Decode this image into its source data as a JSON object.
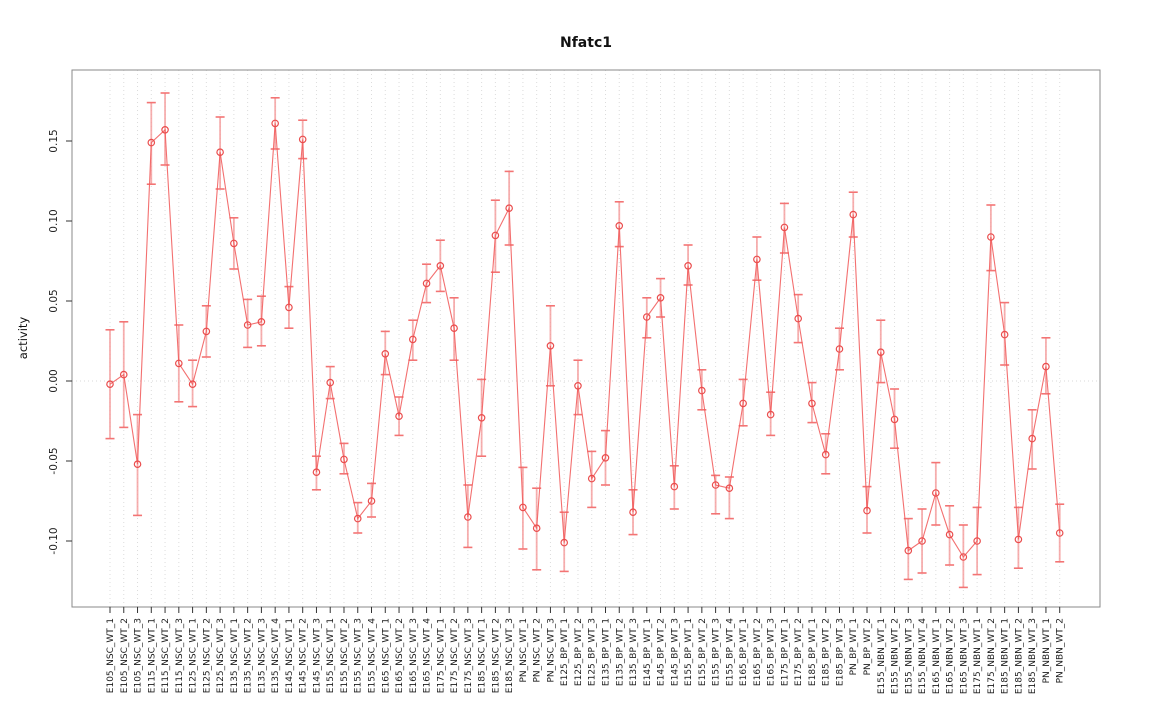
{
  "chart_data": {
    "type": "line",
    "title": "Nfatc1",
    "xlabel": "",
    "ylabel": "activity",
    "legend": "none",
    "grid": "dotted vertical gridline at every category; dotted horizontal line at y=0",
    "marker": "open-circle",
    "error_bars": true,
    "ylim": [
      -0.135,
      0.19
    ],
    "yticks": [
      -0.1,
      -0.05,
      0.0,
      0.05,
      0.1,
      0.15
    ],
    "ytick_labels": [
      "-0.10",
      "-0.05",
      "0.00",
      "0.05",
      "0.10",
      "0.15"
    ],
    "colors": {
      "line": "#f15c5c",
      "marker": "#ea4d4d",
      "error_bar": "#f59a9a",
      "error_cap": "#f37474",
      "grid": "#dcdcdc",
      "zero_line": "#d9d9d9",
      "box": "#8a8a8a",
      "tick": "#333333",
      "text": "#1c1c1c"
    },
    "categories": [
      "E105_NSC_WT_1",
      "E105_NSC_WT_2",
      "E105_NSC_WT_3",
      "E115_NSC_WT_1",
      "E115_NSC_WT_2",
      "E115_NSC_WT_3",
      "E125_NSC_WT_1",
      "E125_NSC_WT_2",
      "E125_NSC_WT_3",
      "E135_NSC_WT_1",
      "E135_NSC_WT_2",
      "E135_NSC_WT_3",
      "E135_NSC_WT_4",
      "E145_NSC_WT_1",
      "E145_NSC_WT_2",
      "E145_NSC_WT_3",
      "E155_NSC_WT_1",
      "E155_NSC_WT_2",
      "E155_NSC_WT_3",
      "E155_NSC_WT_4",
      "E165_NSC_WT_1",
      "E165_NSC_WT_2",
      "E165_NSC_WT_3",
      "E165_NSC_WT_4",
      "E175_NSC_WT_1",
      "E175_NSC_WT_2",
      "E175_NSC_WT_3",
      "E185_NSC_WT_1",
      "E185_NSC_WT_2",
      "E185_NSC_WT_3",
      "PN_NSC_WT_1",
      "PN_NSC_WT_2",
      "PN_NSC_WT_3",
      "E125_BP_WT_1",
      "E125_BP_WT_2",
      "E125_BP_WT_3",
      "E135_BP_WT_1",
      "E135_BP_WT_2",
      "E135_BP_WT_3",
      "E145_BP_WT_1",
      "E145_BP_WT_2",
      "E145_BP_WT_3",
      "E155_BP_WT_1",
      "E155_BP_WT_2",
      "E155_BP_WT_3",
      "E155_BP_WT_4",
      "E165_BP_WT_1",
      "E165_BP_WT_2",
      "E165_BP_WT_3",
      "E175_BP_WT_1",
      "E175_BP_WT_2",
      "E185_BP_WT_1",
      "E185_BP_WT_2",
      "E185_BP_WT_3",
      "PN_BP_WT_1",
      "PN_BP_WT_2",
      "E155_NBN_WT_1",
      "E155_NBN_WT_2",
      "E155_NBN_WT_3",
      "E155_NBN_WT_4",
      "E165_NBN_WT_1",
      "E165_NBN_WT_2",
      "E165_NBN_WT_3",
      "E175_NBN_WT_1",
      "E175_NBN_WT_2",
      "E185_NBN_WT_1",
      "E185_NBN_WT_2",
      "E185_NBN_WT_3",
      "PN_NBN_WT_1",
      "PN_NBN_WT_2"
    ],
    "series": [
      {
        "name": "activity",
        "values": [
          -0.002,
          0.004,
          -0.052,
          0.149,
          0.157,
          0.011,
          -0.002,
          0.031,
          0.143,
          0.086,
          0.035,
          0.037,
          0.161,
          0.046,
          0.151,
          -0.057,
          -0.001,
          -0.049,
          -0.086,
          -0.075,
          0.017,
          -0.022,
          0.026,
          0.061,
          0.072,
          0.033,
          -0.085,
          -0.023,
          0.091,
          0.108,
          -0.079,
          -0.092,
          0.022,
          -0.101,
          -0.003,
          -0.061,
          -0.048,
          0.097,
          -0.082,
          0.04,
          0.052,
          -0.066,
          0.072,
          -0.006,
          -0.065,
          -0.067,
          -0.014,
          0.076,
          -0.021,
          0.096,
          0.039,
          -0.014,
          -0.046,
          0.02,
          0.104,
          -0.081,
          0.018,
          -0.024,
          -0.106,
          -0.1,
          -0.07,
          -0.096,
          -0.11,
          -0.1,
          0.09,
          0.029,
          -0.099,
          -0.036,
          0.009,
          -0.095
        ],
        "err_lo": [
          -0.036,
          -0.029,
          -0.084,
          0.123,
          0.135,
          -0.013,
          -0.016,
          0.015,
          0.12,
          0.07,
          0.021,
          0.022,
          0.145,
          0.033,
          0.139,
          -0.068,
          -0.011,
          -0.058,
          -0.095,
          -0.085,
          0.004,
          -0.034,
          0.013,
          0.049,
          0.056,
          0.013,
          -0.104,
          -0.047,
          0.068,
          0.085,
          -0.105,
          -0.118,
          -0.003,
          -0.119,
          -0.021,
          -0.079,
          -0.065,
          0.084,
          -0.096,
          0.027,
          0.04,
          -0.08,
          0.06,
          -0.018,
          -0.083,
          -0.086,
          -0.028,
          0.063,
          -0.034,
          0.08,
          0.024,
          -0.026,
          -0.058,
          0.007,
          0.09,
          -0.095,
          -0.001,
          -0.042,
          -0.124,
          -0.12,
          -0.09,
          -0.115,
          -0.129,
          -0.121,
          0.069,
          0.01,
          -0.117,
          -0.055,
          -0.008,
          -0.113
        ],
        "err_hi": [
          0.032,
          0.037,
          -0.021,
          0.174,
          0.18,
          0.035,
          0.013,
          0.047,
          0.165,
          0.102,
          0.051,
          0.053,
          0.177,
          0.059,
          0.163,
          -0.047,
          0.009,
          -0.039,
          -0.076,
          -0.064,
          0.031,
          -0.01,
          0.038,
          0.073,
          0.088,
          0.052,
          -0.065,
          0.001,
          0.113,
          0.131,
          -0.054,
          -0.067,
          0.047,
          -0.082,
          0.013,
          -0.044,
          -0.031,
          0.112,
          -0.068,
          0.052,
          0.064,
          -0.053,
          0.085,
          0.007,
          -0.059,
          -0.06,
          0.001,
          0.09,
          -0.007,
          0.111,
          0.054,
          -0.001,
          -0.033,
          0.033,
          0.118,
          -0.066,
          0.038,
          -0.005,
          -0.086,
          -0.08,
          -0.051,
          -0.078,
          -0.09,
          -0.079,
          0.11,
          0.049,
          -0.079,
          -0.018,
          0.027,
          -0.077
        ]
      }
    ]
  }
}
